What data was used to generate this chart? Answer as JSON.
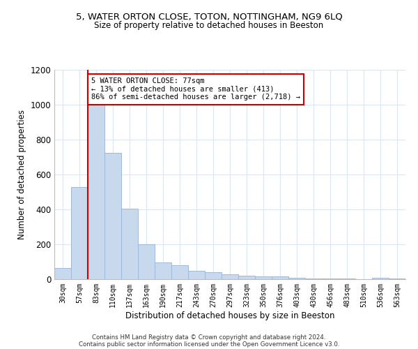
{
  "title_line1": "5, WATER ORTON CLOSE, TOTON, NOTTINGHAM, NG9 6LQ",
  "title_line2": "Size of property relative to detached houses in Beeston",
  "xlabel": "Distribution of detached houses by size in Beeston",
  "ylabel": "Number of detached properties",
  "bar_color": "#c8d9ed",
  "bar_edge_color": "#a0b8d8",
  "bar_categories": [
    "30sqm",
    "57sqm",
    "83sqm",
    "110sqm",
    "137sqm",
    "163sqm",
    "190sqm",
    "217sqm",
    "243sqm",
    "270sqm",
    "297sqm",
    "323sqm",
    "350sqm",
    "376sqm",
    "403sqm",
    "430sqm",
    "456sqm",
    "483sqm",
    "510sqm",
    "536sqm",
    "563sqm"
  ],
  "bar_values": [
    65,
    530,
    1000,
    725,
    405,
    200,
    95,
    80,
    50,
    40,
    30,
    20,
    15,
    15,
    8,
    5,
    5,
    3,
    2,
    10,
    5
  ],
  "ylim": [
    0,
    1200
  ],
  "yticks": [
    0,
    200,
    400,
    600,
    800,
    1000,
    1200
  ],
  "property_line_index": 2,
  "property_line_color": "#cc0000",
  "annotation_text": "5 WATER ORTON CLOSE: 77sqm\n← 13% of detached houses are smaller (413)\n86% of semi-detached houses are larger (2,718) →",
  "annotation_box_color": "#ffffff",
  "annotation_box_edge_color": "#cc0000",
  "footnote_line1": "Contains HM Land Registry data © Crown copyright and database right 2024.",
  "footnote_line2": "Contains public sector information licensed under the Open Government Licence v3.0.",
  "background_color": "#ffffff",
  "grid_color": "#dce6f0"
}
